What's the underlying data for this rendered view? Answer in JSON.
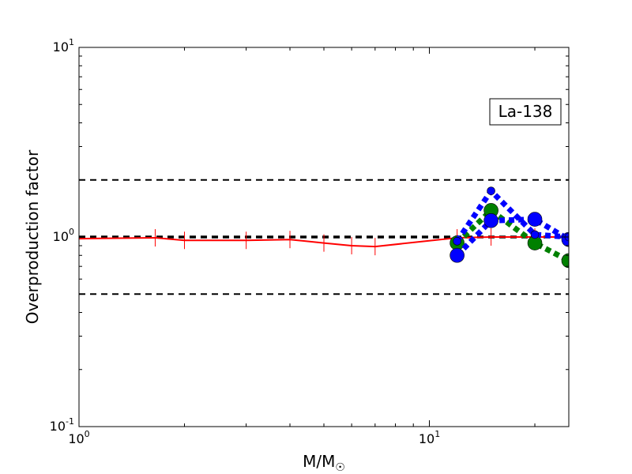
{
  "chart_data": {
    "type": "line",
    "xlabel": "M/M",
    "xlabel_sub": "☉",
    "ylabel": "Overproduction factor",
    "xscale": "log",
    "yscale": "log",
    "xlim": [
      1,
      25
    ],
    "ylim": [
      0.1,
      10
    ],
    "x_ticks": [
      {
        "value": 1,
        "base": "10",
        "exp": "0"
      },
      {
        "value": 10,
        "base": "10",
        "exp": "1"
      }
    ],
    "y_ticks": [
      {
        "value": 0.1,
        "base": "10",
        "exp": "-1"
      },
      {
        "value": 1,
        "base": "10",
        "exp": "0"
      },
      {
        "value": 10,
        "base": "10",
        "exp": "1"
      }
    ],
    "annotation": "La-138",
    "reference_lines": [
      {
        "y": 2.0,
        "color": "#000000",
        "style": "dashed",
        "width": 2
      },
      {
        "y": 1.0,
        "color": "#000000",
        "style": "dashed",
        "width": 3.5
      },
      {
        "y": 0.5,
        "color": "#000000",
        "style": "dashed",
        "width": 2
      }
    ],
    "series": [
      {
        "color": "#ff0000",
        "style": "solid",
        "marker": "vline",
        "x": [
          1.0,
          1.65,
          2.0,
          3.0,
          4.0,
          5.0,
          6.0,
          7.0,
          12.0,
          15.0,
          20.0,
          25.0
        ],
        "y": [
          0.98,
          0.99,
          0.96,
          0.96,
          0.97,
          0.93,
          0.9,
          0.89,
          0.99,
          1.0,
          1.0,
          1.0
        ]
      },
      {
        "color": "#008000",
        "style": "dotted",
        "marker": "circle",
        "x": [
          12.0,
          15.0,
          20.0,
          25.0
        ],
        "y": [
          0.93,
          1.38,
          0.93,
          0.75
        ]
      },
      {
        "color": "#0000ff",
        "style": "dotted",
        "marker": "circle",
        "x": [
          12.0,
          15.0,
          20.0,
          25.0
        ],
        "y": [
          0.8,
          1.22,
          1.24,
          0.97
        ]
      },
      {
        "color": "#0000ff",
        "style": "dotted",
        "marker": "circle-small",
        "x": [
          12.0,
          15.0,
          20.0,
          25.0
        ],
        "y": [
          0.95,
          1.75,
          1.03,
          1.0
        ]
      }
    ]
  }
}
